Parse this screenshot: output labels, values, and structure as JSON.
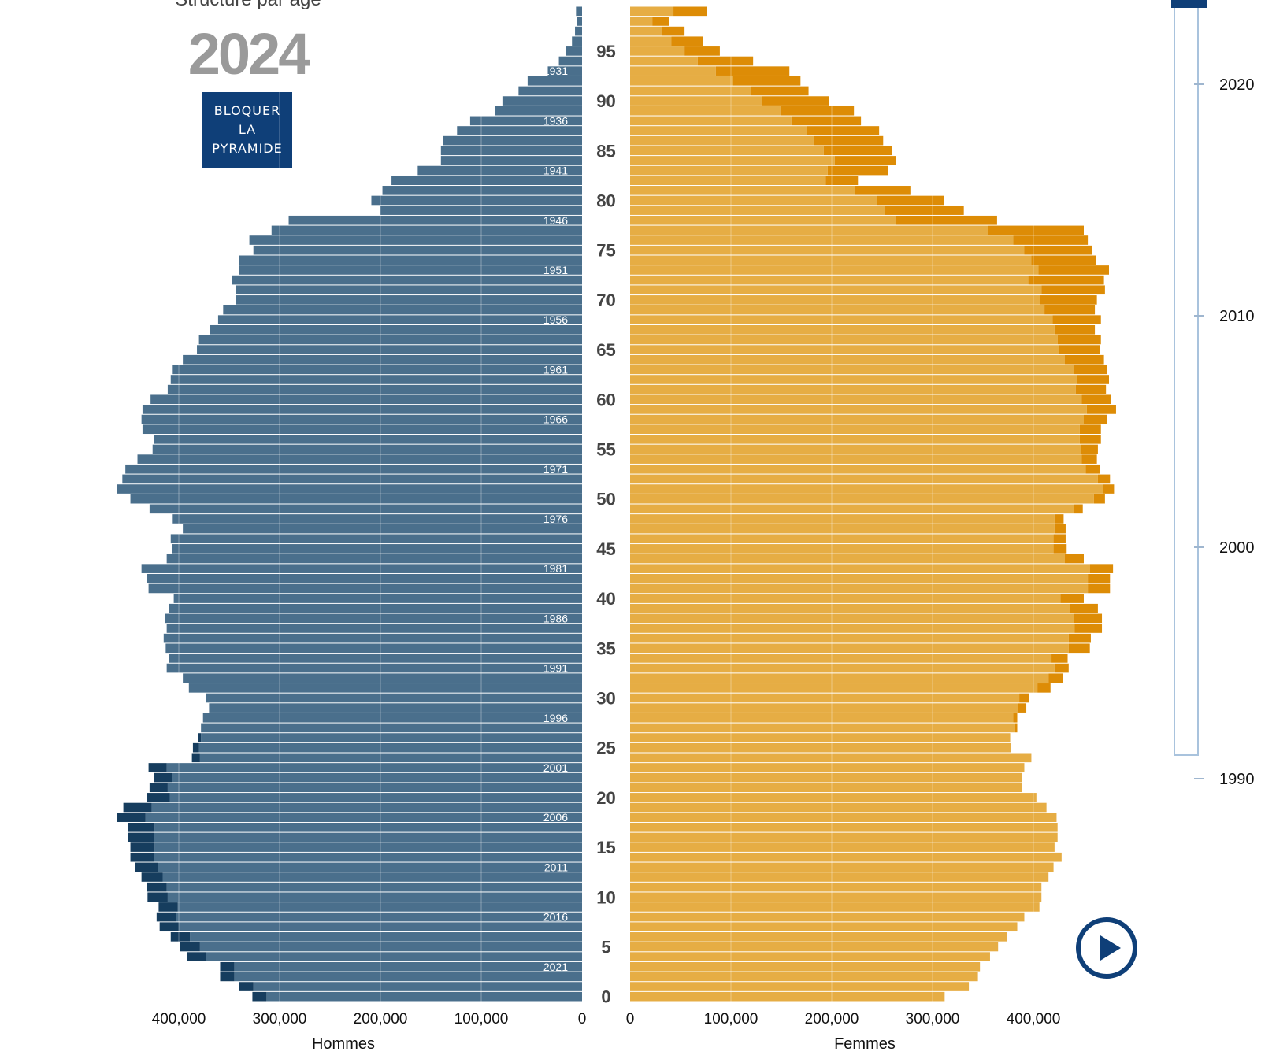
{
  "header": {
    "subtitle": "Structure par âge",
    "year": "2024",
    "lock_button_lines": [
      "BLOQUER",
      "LA",
      "PYRAMIDE"
    ]
  },
  "timeline": {
    "ticks": [
      "2020",
      "2010",
      "2000",
      "1990"
    ],
    "range": [
      1990,
      2024
    ],
    "selected_year": 2024,
    "color": "#a9c3dd",
    "handle_color": "#0f3f78"
  },
  "chart_data": {
    "type": "bar",
    "orientation": "horizontal-population-pyramid",
    "age_labels": [
      "0",
      "5",
      "10",
      "15",
      "20",
      "25",
      "30",
      "35",
      "40",
      "45",
      "50",
      "55",
      "60",
      "65",
      "70",
      "75",
      "80",
      "85",
      "90",
      "95"
    ],
    "birth_year_labels": [
      "2021",
      "2016",
      "2011",
      "2006",
      "2001",
      "1996",
      "1991",
      "1986",
      "1981",
      "1976",
      "1971",
      "1966",
      "1961",
      "1956",
      "1951",
      "1946",
      "1941",
      "1936",
      "1931"
    ],
    "ages": [
      0,
      1,
      2,
      3,
      4,
      5,
      6,
      7,
      8,
      9,
      10,
      11,
      12,
      13,
      14,
      15,
      16,
      17,
      18,
      19,
      20,
      21,
      22,
      23,
      24,
      25,
      26,
      27,
      28,
      29,
      30,
      31,
      32,
      33,
      34,
      35,
      36,
      37,
      38,
      39,
      40,
      41,
      42,
      43,
      44,
      45,
      46,
      47,
      48,
      49,
      50,
      51,
      52,
      53,
      54,
      55,
      56,
      57,
      58,
      59,
      60,
      61,
      62,
      63,
      64,
      65,
      66,
      67,
      68,
      69,
      70,
      71,
      72,
      73,
      74,
      75,
      76,
      77,
      78,
      79,
      80,
      81,
      82,
      83,
      84,
      85,
      86,
      87,
      88,
      89,
      90,
      91,
      92,
      93,
      94,
      95,
      96,
      97,
      98,
      99
    ],
    "men": {
      "label": "Hommes",
      "axis_ticks": [
        "400,000",
        "300,000",
        "200,000",
        "100,000",
        "0"
      ],
      "color": "#4a6f8c",
      "excess_color": "#163d5e",
      "values": [
        313000,
        326000,
        345000,
        345000,
        373000,
        379000,
        389000,
        400000,
        403000,
        401000,
        411000,
        412000,
        416000,
        421000,
        425000,
        424000,
        425000,
        424000,
        433000,
        427000,
        409000,
        411000,
        407000,
        412000,
        379000,
        380000,
        378000,
        378000,
        376000,
        370000,
        373000,
        390000,
        396000,
        412000,
        410000,
        413000,
        415000,
        412000,
        414000,
        410000,
        405000,
        430000,
        432000,
        437000,
        412000,
        407000,
        408000,
        396000,
        406000,
        429000,
        448000,
        461000,
        456000,
        453000,
        441000,
        426000,
        425000,
        436000,
        437000,
        436000,
        428000,
        411000,
        408000,
        406000,
        396000,
        382000,
        380000,
        369000,
        361000,
        356000,
        343000,
        343000,
        347000,
        340000,
        340000,
        326000,
        330000,
        308000,
        291000,
        200000,
        209000,
        198000,
        189000,
        163000,
        140000,
        140000,
        138000,
        124000,
        111000,
        86000,
        79000,
        63000,
        54000,
        34000,
        23000,
        16000,
        10000,
        7000,
        5000,
        6000
      ],
      "surplus_values": [
        14000,
        14000,
        14000,
        14000,
        19000,
        20000,
        19000,
        19000,
        19000,
        19000,
        20000,
        20000,
        21000,
        22000,
        23000,
        24000,
        25000,
        26000,
        28000,
        28000,
        23000,
        18000,
        18000,
        18000,
        8000,
        6000,
        3000,
        0,
        0,
        0,
        0,
        0,
        0,
        0,
        0,
        0,
        0,
        0,
        0,
        0,
        0,
        0,
        0,
        0,
        0,
        0,
        0,
        0,
        0,
        0,
        0,
        0,
        0,
        0,
        0,
        0,
        0,
        0,
        0,
        0,
        0,
        0,
        0,
        0,
        0,
        0,
        0,
        0,
        0,
        0,
        0,
        0,
        0,
        0,
        0,
        0,
        0,
        0,
        0,
        0,
        0,
        0,
        0,
        0,
        0,
        0,
        0,
        0,
        0,
        0,
        0,
        0,
        0,
        0,
        0,
        0,
        0,
        0,
        0,
        0
      ]
    },
    "women": {
      "label": "Femmes",
      "axis_ticks": [
        "0",
        "100,000",
        "200,000",
        "300,000",
        "400,000"
      ],
      "color": "#e6ad44",
      "excess_color": "#dd8c06",
      "values": [
        312000,
        336000,
        345000,
        347000,
        357000,
        365000,
        374000,
        384000,
        391000,
        406000,
        408000,
        408000,
        415000,
        420000,
        428000,
        421000,
        424000,
        424000,
        423000,
        413000,
        403000,
        389000,
        389000,
        391000,
        398000,
        378000,
        377000,
        382000,
        380000,
        385000,
        386000,
        404000,
        415000,
        421000,
        418000,
        435000,
        435000,
        441000,
        440000,
        436000,
        427000,
        454000,
        454000,
        456000,
        431000,
        420000,
        420000,
        421000,
        421000,
        440000,
        460000,
        469000,
        464000,
        452000,
        448000,
        447000,
        446000,
        446000,
        450000,
        453000,
        448000,
        442000,
        443000,
        440000,
        431000,
        425000,
        424000,
        421000,
        419000,
        411000,
        407000,
        408000,
        395000,
        405000,
        398000,
        391000,
        380000,
        355000,
        264000,
        253000,
        245000,
        223000,
        194000,
        196000,
        203000,
        192000,
        182000,
        175000,
        160000,
        149000,
        131000,
        120000,
        102000,
        85000,
        67000,
        54000,
        41000,
        32000,
        22000,
        43000
      ],
      "surplus_values": [
        0,
        0,
        0,
        0,
        0,
        0,
        0,
        0,
        0,
        0,
        0,
        0,
        0,
        0,
        0,
        0,
        0,
        0,
        0,
        0,
        0,
        0,
        0,
        0,
        0,
        0,
        0,
        2000,
        4000,
        8000,
        10000,
        13000,
        14000,
        14000,
        16000,
        21000,
        22000,
        27000,
        28000,
        28000,
        23000,
        22000,
        22000,
        23000,
        19000,
        13000,
        12000,
        11000,
        9000,
        9000,
        11000,
        11000,
        12000,
        14000,
        15000,
        17000,
        21000,
        21000,
        23000,
        29000,
        29000,
        30000,
        32000,
        33000,
        39000,
        41000,
        43000,
        40000,
        48000,
        50000,
        56000,
        63000,
        75000,
        70000,
        64000,
        67000,
        74000,
        95000,
        100000,
        78000,
        66000,
        55000,
        32000,
        60000,
        61000,
        68000,
        69000,
        72000,
        69000,
        73000,
        66000,
        57000,
        67000,
        73000,
        55000,
        35000,
        31000,
        22000,
        17000,
        33000
      ]
    }
  }
}
